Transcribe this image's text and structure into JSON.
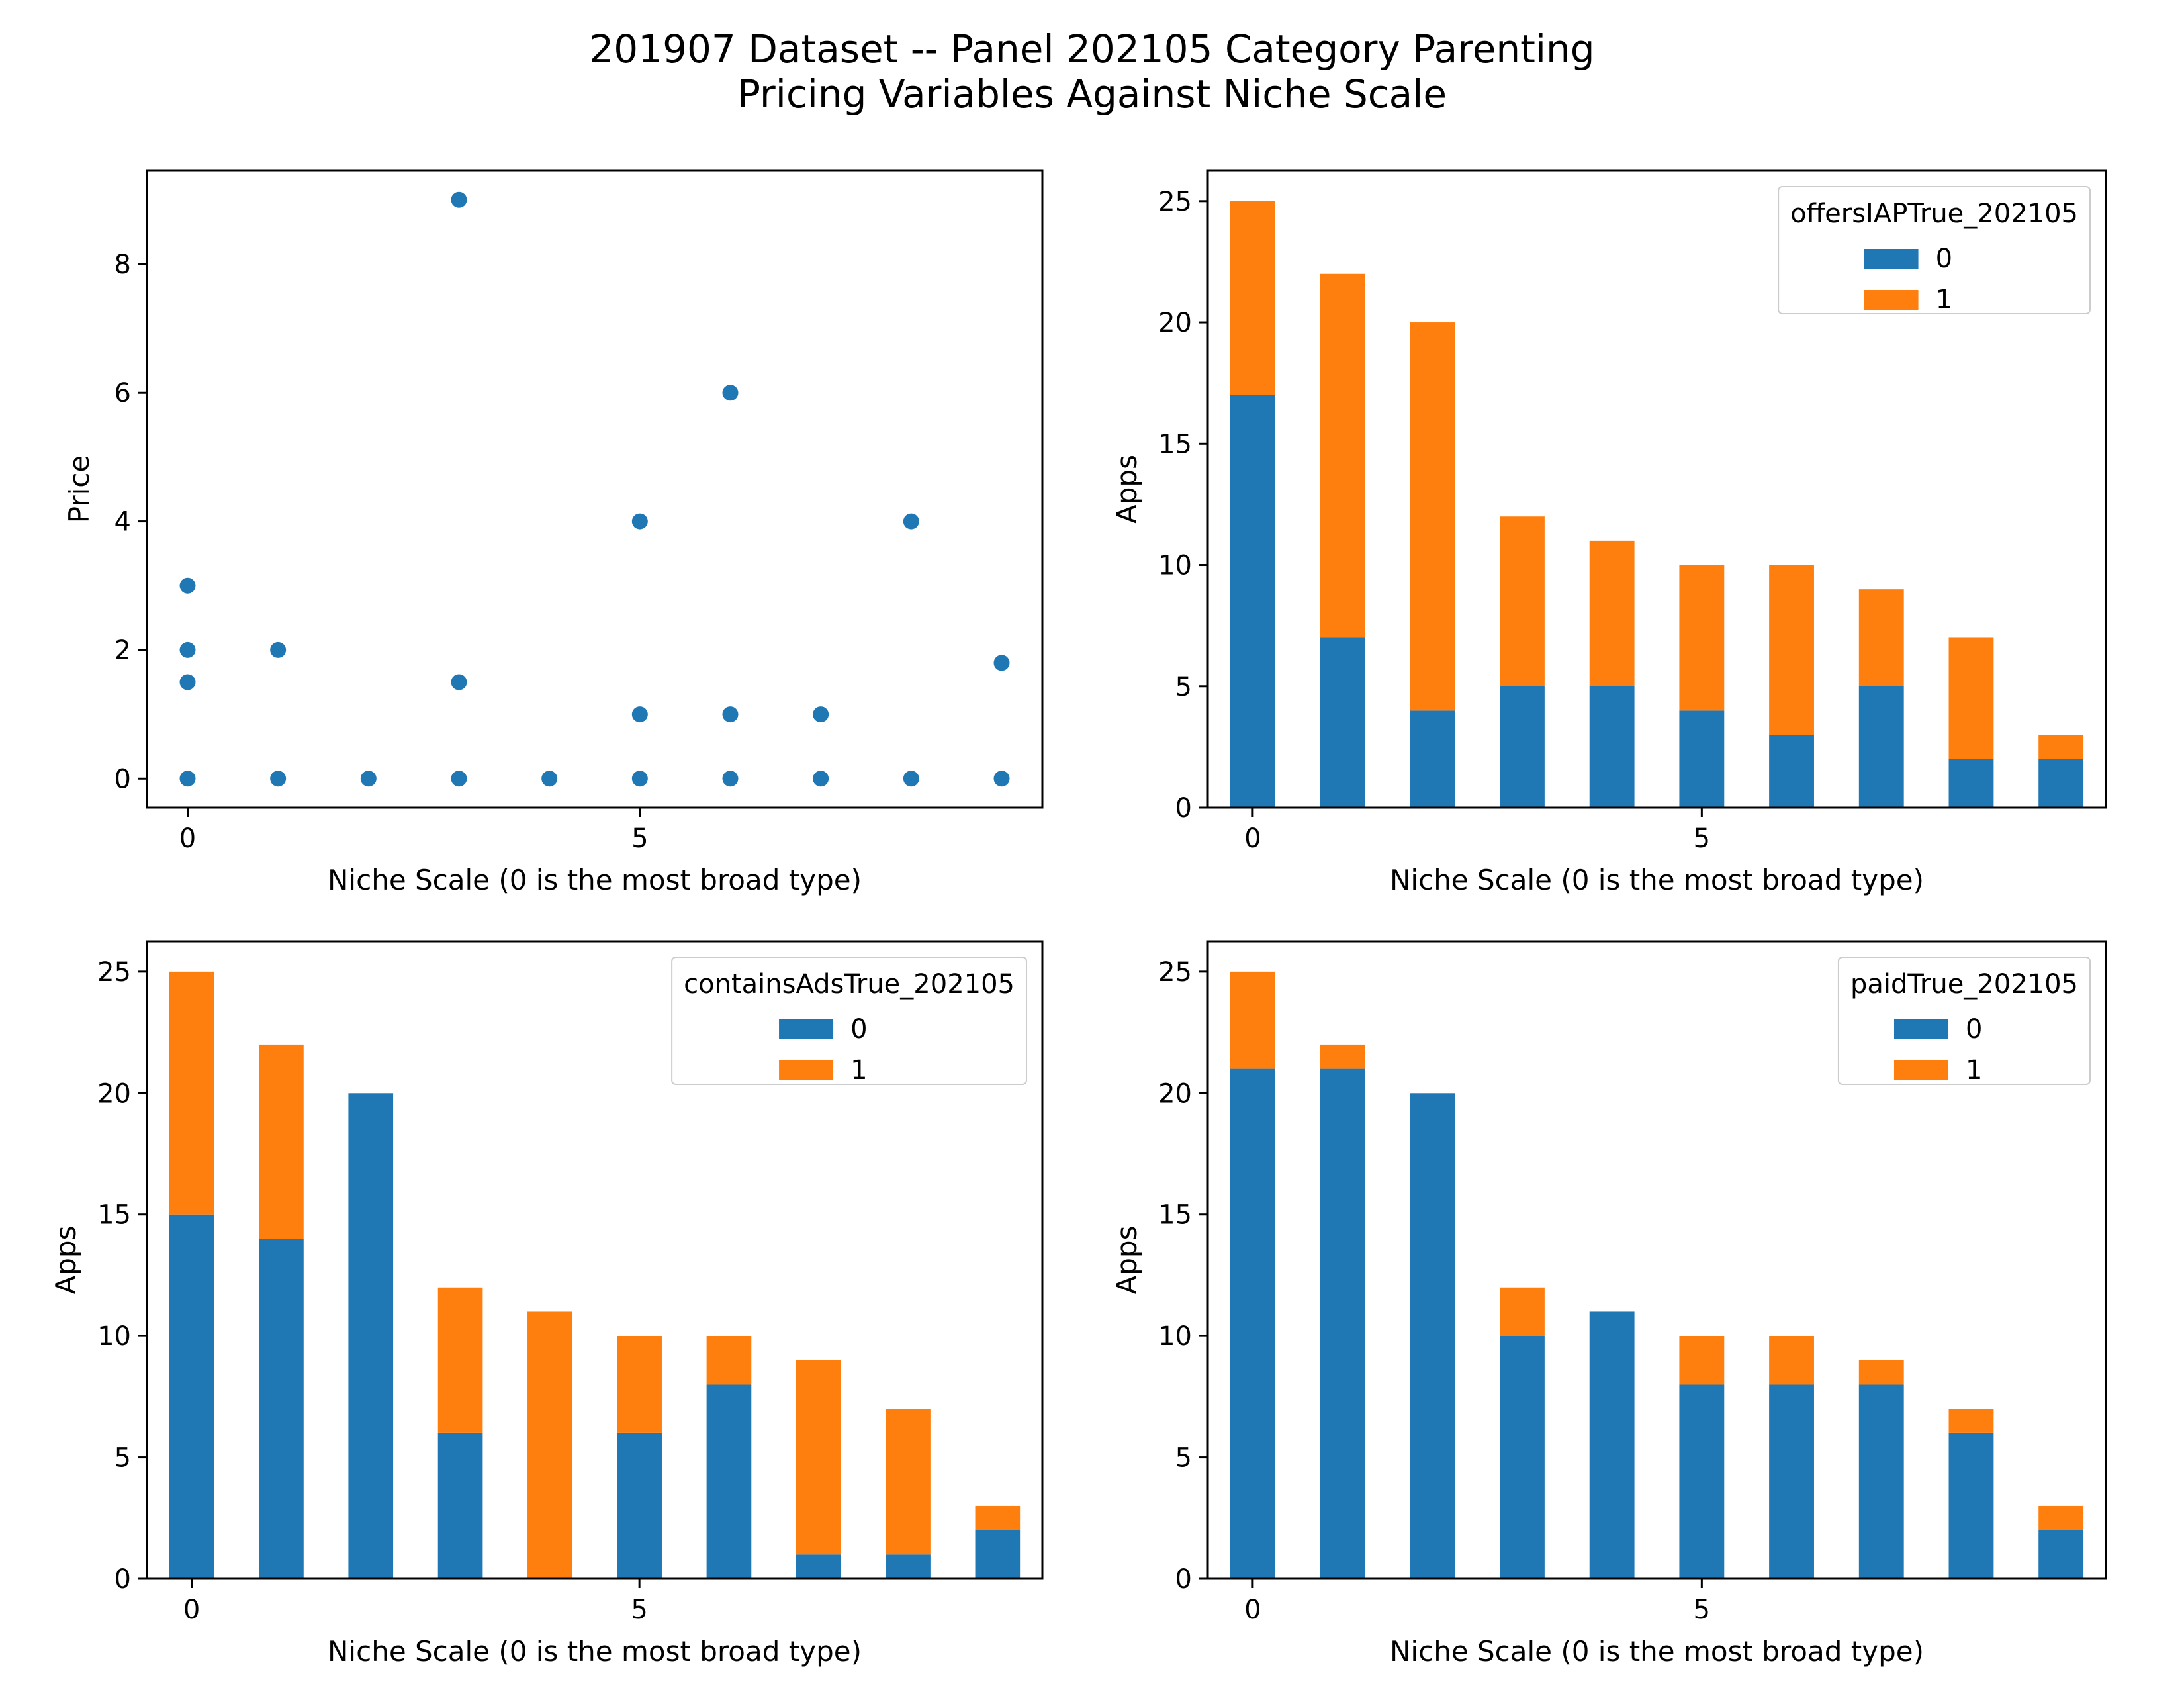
{
  "figure": {
    "title_line1": "201907 Dataset -- Panel 202105 Category Parenting",
    "title_line2": "Pricing Variables Against Niche Scale"
  },
  "colors": {
    "series0": "#1f77b4",
    "series1": "#ff7f0e"
  },
  "chart_data": [
    {
      "type": "scatter",
      "xlabel": "Niche Scale (0 is the most broad type)",
      "ylabel": "Price",
      "xlim": [
        -0.45,
        9.45
      ],
      "ylim": [
        -0.45,
        9.45
      ],
      "xticks": [
        0,
        5
      ],
      "yticks": [
        0,
        2,
        4,
        6,
        8
      ],
      "points": [
        {
          "x": 0,
          "y": 3
        },
        {
          "x": 0,
          "y": 2
        },
        {
          "x": 0,
          "y": 1.5
        },
        {
          "x": 0,
          "y": 0
        },
        {
          "x": 1,
          "y": 2
        },
        {
          "x": 1,
          "y": 0
        },
        {
          "x": 2,
          "y": 0
        },
        {
          "x": 3,
          "y": 9
        },
        {
          "x": 3,
          "y": 1.5
        },
        {
          "x": 3,
          "y": 0
        },
        {
          "x": 4,
          "y": 0
        },
        {
          "x": 5,
          "y": 4
        },
        {
          "x": 5,
          "y": 1
        },
        {
          "x": 5,
          "y": 0
        },
        {
          "x": 6,
          "y": 6
        },
        {
          "x": 6,
          "y": 1
        },
        {
          "x": 6,
          "y": 0
        },
        {
          "x": 7,
          "y": 1
        },
        {
          "x": 7,
          "y": 0
        },
        {
          "x": 8,
          "y": 4
        },
        {
          "x": 8,
          "y": 0
        },
        {
          "x": 9,
          "y": 1.8
        },
        {
          "x": 9,
          "y": 0
        }
      ]
    },
    {
      "type": "bar",
      "stacked": true,
      "xlabel": "Niche Scale (0 is the most broad type)",
      "ylabel": "Apps",
      "ylim": [
        0,
        26.25
      ],
      "yticks": [
        0,
        5,
        10,
        15,
        20,
        25
      ],
      "xticks": [
        0,
        5
      ],
      "categories": [
        0,
        1,
        2,
        3,
        4,
        5,
        6,
        7,
        8,
        9
      ],
      "legend_title": "offersIAPTrue_202105",
      "legend_position": "top-right",
      "series": [
        {
          "name": "0",
          "values": [
            17,
            7,
            4,
            5,
            5,
            4,
            3,
            5,
            2,
            2
          ]
        },
        {
          "name": "1",
          "values": [
            8,
            15,
            16,
            7,
            6,
            6,
            7,
            4,
            5,
            1
          ]
        }
      ]
    },
    {
      "type": "bar",
      "stacked": true,
      "xlabel": "Niche Scale (0 is the most broad type)",
      "ylabel": "Apps",
      "ylim": [
        0,
        26.25
      ],
      "yticks": [
        0,
        5,
        10,
        15,
        20,
        25
      ],
      "xticks": [
        0,
        5
      ],
      "categories": [
        0,
        1,
        2,
        3,
        4,
        5,
        6,
        7,
        8,
        9
      ],
      "legend_title": "containsAdsTrue_202105",
      "legend_position": "top-right",
      "series": [
        {
          "name": "0",
          "values": [
            15,
            14,
            20,
            6,
            0,
            6,
            8,
            1,
            1,
            2
          ]
        },
        {
          "name": "1",
          "values": [
            10,
            8,
            0,
            6,
            11,
            4,
            2,
            8,
            6,
            1
          ]
        }
      ]
    },
    {
      "type": "bar",
      "stacked": true,
      "xlabel": "Niche Scale (0 is the most broad type)",
      "ylabel": "Apps",
      "ylim": [
        0,
        26.25
      ],
      "yticks": [
        0,
        5,
        10,
        15,
        20,
        25
      ],
      "xticks": [
        0,
        5
      ],
      "categories": [
        0,
        1,
        2,
        3,
        4,
        5,
        6,
        7,
        8,
        9
      ],
      "legend_title": "paidTrue_202105",
      "legend_position": "top-right",
      "series": [
        {
          "name": "0",
          "values": [
            21,
            21,
            20,
            10,
            11,
            8,
            8,
            8,
            6,
            2
          ]
        },
        {
          "name": "1",
          "values": [
            4,
            1,
            0,
            2,
            0,
            2,
            2,
            1,
            1,
            1
          ]
        }
      ]
    }
  ]
}
